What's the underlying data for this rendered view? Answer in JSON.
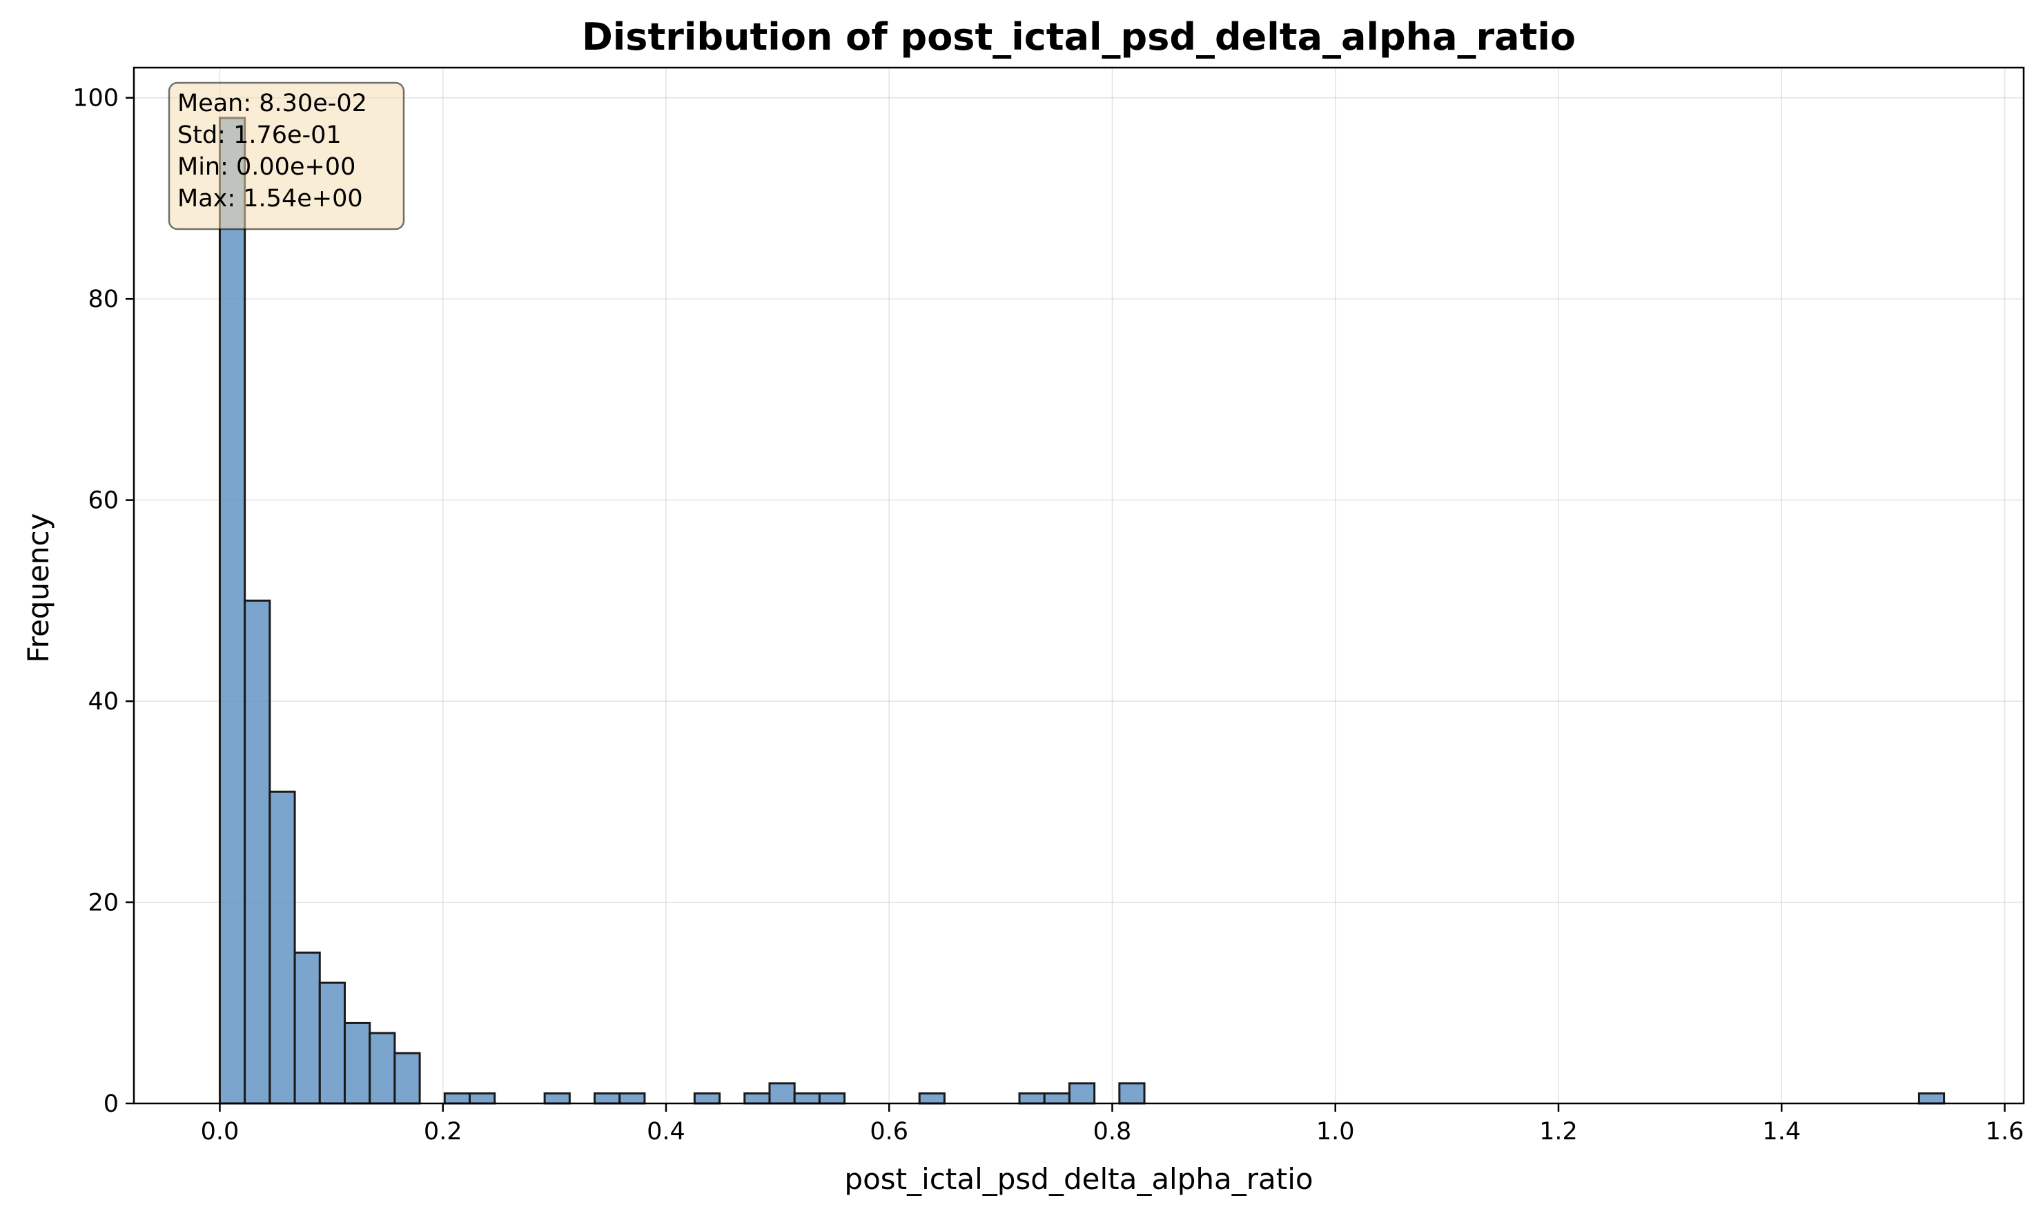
{
  "chart_data": {
    "type": "bar",
    "title": "Distribution of post_ictal_psd_delta_alpha_ratio",
    "xlabel": "post_ictal_psd_delta_alpha_ratio",
    "ylabel": "Frequency",
    "xlim": [
      -0.077,
      1.617
    ],
    "ylim": [
      0,
      103
    ],
    "xticks": [
      0.0,
      0.2,
      0.4,
      0.6,
      0.8,
      1.0,
      1.2,
      1.4,
      1.6
    ],
    "xtick_labels": [
      "0.0",
      "0.2",
      "0.4",
      "0.6",
      "0.8",
      "1.0",
      "1.2",
      "1.4",
      "1.6"
    ],
    "yticks": [
      0,
      20,
      40,
      60,
      80,
      100
    ],
    "ytick_labels": [
      "0",
      "20",
      "40",
      "60",
      "80",
      "100"
    ],
    "grid": true,
    "bin_start": 0.0,
    "bin_width": 0.0224,
    "values": [
      98,
      50,
      31,
      15,
      12,
      8,
      7,
      5,
      0,
      1,
      1,
      0,
      0,
      1,
      0,
      1,
      1,
      0,
      0,
      1,
      0,
      1,
      2,
      1,
      1,
      0,
      0,
      0,
      1,
      0,
      0,
      0,
      1,
      1,
      2,
      0,
      2,
      0,
      0,
      0,
      0,
      0,
      0,
      0,
      0,
      0,
      0,
      0,
      0,
      0,
      0,
      0,
      0,
      0,
      0,
      0,
      0,
      0,
      0,
      0,
      0,
      0,
      0,
      0,
      0,
      0,
      0,
      0,
      1
    ],
    "bar_color": "#5b8fc0",
    "edge_color": "#1a1a1a",
    "stats_box": {
      "lines": [
        "Mean: 8.30e-02",
        "Std: 1.76e-01",
        "Min: 0.00e+00",
        "Max: 1.54e+00"
      ],
      "placement": "top-left",
      "background": "#f5deb3"
    }
  }
}
